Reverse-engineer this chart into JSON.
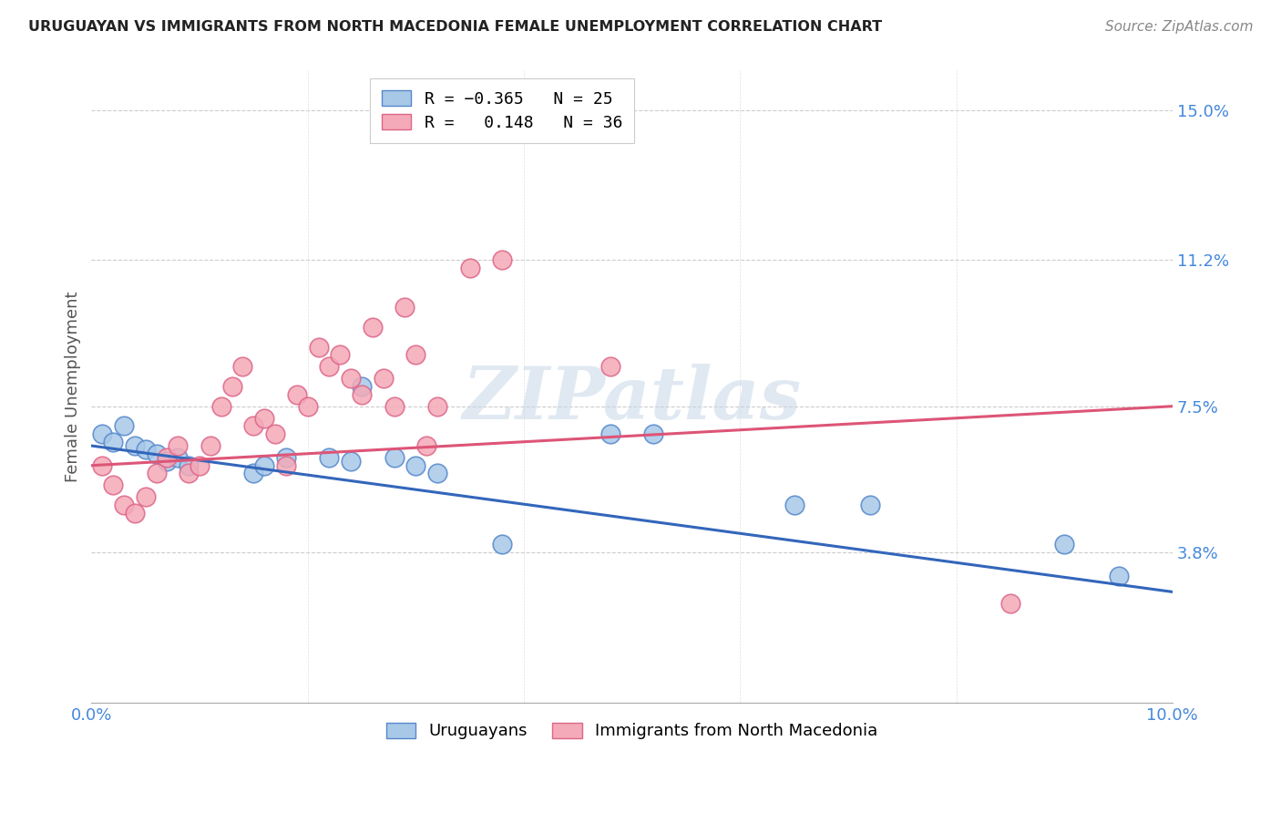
{
  "title": "URUGUAYAN VS IMMIGRANTS FROM NORTH MACEDONIA FEMALE UNEMPLOYMENT CORRELATION CHART",
  "source": "Source: ZipAtlas.com",
  "ylabel": "Female Unemployment",
  "xlim": [
    0.0,
    0.1
  ],
  "ylim": [
    0.0,
    0.16
  ],
  "yticks": [
    0.038,
    0.075,
    0.112,
    0.15
  ],
  "ytick_labels": [
    "3.8%",
    "7.5%",
    "11.2%",
    "15.0%"
  ],
  "xticks": [
    0.0,
    0.02,
    0.04,
    0.06,
    0.08,
    0.1
  ],
  "xtick_labels": [
    "0.0%",
    "",
    "",
    "",
    "",
    "10.0%"
  ],
  "blue_color": "#a8c8e8",
  "pink_color": "#f4aab8",
  "blue_edge_color": "#5588cc",
  "pink_edge_color": "#dd6688",
  "blue_line_color": "#3366bb",
  "pink_line_color": "#dd5577",
  "watermark": "ZIPatlas",
  "uruguayans_x": [
    0.001,
    0.002,
    0.003,
    0.004,
    0.005,
    0.006,
    0.007,
    0.008,
    0.009,
    0.015,
    0.016,
    0.018,
    0.022,
    0.024,
    0.025,
    0.028,
    0.03,
    0.032,
    0.038,
    0.048,
    0.052,
    0.065,
    0.072,
    0.09,
    0.095
  ],
  "uruguayans_y": [
    0.068,
    0.066,
    0.07,
    0.065,
    0.064,
    0.063,
    0.061,
    0.062,
    0.06,
    0.058,
    0.06,
    0.062,
    0.062,
    0.061,
    0.08,
    0.062,
    0.06,
    0.058,
    0.04,
    0.068,
    0.068,
    0.05,
    0.05,
    0.04,
    0.032
  ],
  "macedonia_x": [
    0.001,
    0.002,
    0.003,
    0.004,
    0.005,
    0.006,
    0.007,
    0.008,
    0.009,
    0.01,
    0.011,
    0.012,
    0.013,
    0.014,
    0.015,
    0.016,
    0.017,
    0.018,
    0.019,
    0.02,
    0.021,
    0.022,
    0.023,
    0.024,
    0.025,
    0.026,
    0.027,
    0.028,
    0.029,
    0.03,
    0.031,
    0.032,
    0.035,
    0.038,
    0.048,
    0.085
  ],
  "macedonia_y": [
    0.06,
    0.055,
    0.05,
    0.048,
    0.052,
    0.058,
    0.062,
    0.065,
    0.058,
    0.06,
    0.065,
    0.075,
    0.08,
    0.085,
    0.07,
    0.072,
    0.068,
    0.06,
    0.078,
    0.075,
    0.09,
    0.085,
    0.088,
    0.082,
    0.078,
    0.095,
    0.082,
    0.075,
    0.1,
    0.088,
    0.065,
    0.075,
    0.11,
    0.112,
    0.085,
    0.025
  ],
  "blue_line_x0": 0.0,
  "blue_line_y0": 0.065,
  "blue_line_x1": 0.1,
  "blue_line_y1": 0.028,
  "pink_line_x0": 0.0,
  "pink_line_y0": 0.06,
  "pink_line_x1": 0.1,
  "pink_line_y1": 0.075
}
